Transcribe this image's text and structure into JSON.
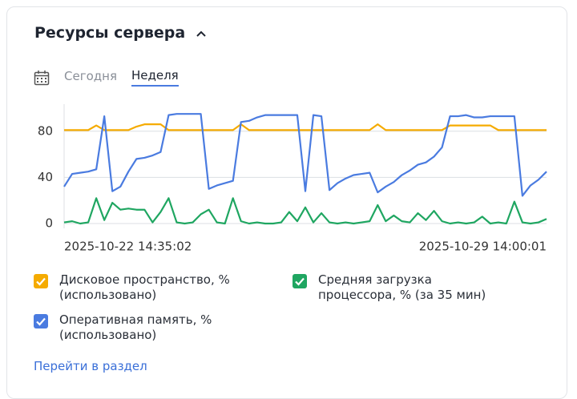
{
  "header": {
    "title": "Ресурсы сервера"
  },
  "tabs": [
    "Сегодня",
    "Неделя"
  ],
  "active_tab": 1,
  "chart_data": {
    "type": "line",
    "categories": [
      "2025-10-22 14:35:02",
      null,
      null,
      null,
      null,
      null,
      null,
      null,
      null,
      null,
      null,
      null,
      null,
      null,
      null,
      null,
      null,
      null,
      null,
      null,
      null,
      null,
      null,
      null,
      null,
      null,
      null,
      null,
      null,
      null,
      null,
      null,
      null,
      null,
      null,
      null,
      null,
      null,
      null,
      null,
      null,
      null,
      null,
      null,
      null,
      null,
      null,
      null,
      null,
      null,
      null,
      null,
      null,
      null,
      null,
      null,
      null,
      null,
      null,
      null,
      "2025-10-29 14:00:01"
    ],
    "ylim": [
      0,
      100
    ],
    "yticks": [
      0,
      40,
      80
    ],
    "grid": true,
    "series": [
      {
        "name": "Дисковое пространство, % (использовано)",
        "color": "#f5ab00",
        "values": [
          81,
          81,
          81,
          81,
          85,
          81,
          81,
          81,
          81,
          84,
          86,
          86,
          86,
          81,
          81,
          81,
          81,
          81,
          81,
          81,
          81,
          81,
          86,
          81,
          81,
          81,
          81,
          81,
          81,
          81,
          81,
          81,
          81,
          81,
          81,
          81,
          81,
          81,
          81,
          86,
          81,
          81,
          81,
          81,
          81,
          81,
          81,
          81,
          85,
          85,
          85,
          85,
          85,
          85,
          81,
          81,
          81,
          81,
          81,
          81,
          81
        ]
      },
      {
        "name": "Средняя загрузка процессора, % (за 35 мин)",
        "color": "#1fa661",
        "values": [
          1,
          2,
          0,
          1,
          22,
          3,
          18,
          12,
          13,
          12,
          12,
          1,
          10,
          22,
          1,
          0,
          1,
          8,
          12,
          1,
          0,
          22,
          2,
          0,
          1,
          0,
          0,
          1,
          10,
          2,
          14,
          1,
          9,
          1,
          0,
          1,
          0,
          1,
          2,
          16,
          2,
          7,
          2,
          1,
          9,
          3,
          11,
          2,
          0,
          1,
          0,
          1,
          6,
          0,
          1,
          0,
          19,
          1,
          0,
          1,
          4
        ]
      },
      {
        "name": "Оперативная память, % (использовано)",
        "color": "#4a7be0",
        "values": [
          32,
          43,
          44,
          45,
          47,
          93,
          28,
          32,
          45,
          56,
          57,
          59,
          62,
          94,
          95,
          95,
          95,
          95,
          30,
          33,
          35,
          37,
          88,
          89,
          92,
          94,
          94,
          94,
          94,
          94,
          28,
          94,
          93,
          29,
          35,
          39,
          42,
          43,
          44,
          27,
          32,
          36,
          42,
          46,
          51,
          53,
          58,
          66,
          93,
          93,
          94,
          92,
          92,
          93,
          93,
          93,
          93,
          24,
          33,
          38,
          45
        ]
      }
    ]
  },
  "legend_order": [
    0,
    1,
    2
  ],
  "link": "Перейти в раздел"
}
